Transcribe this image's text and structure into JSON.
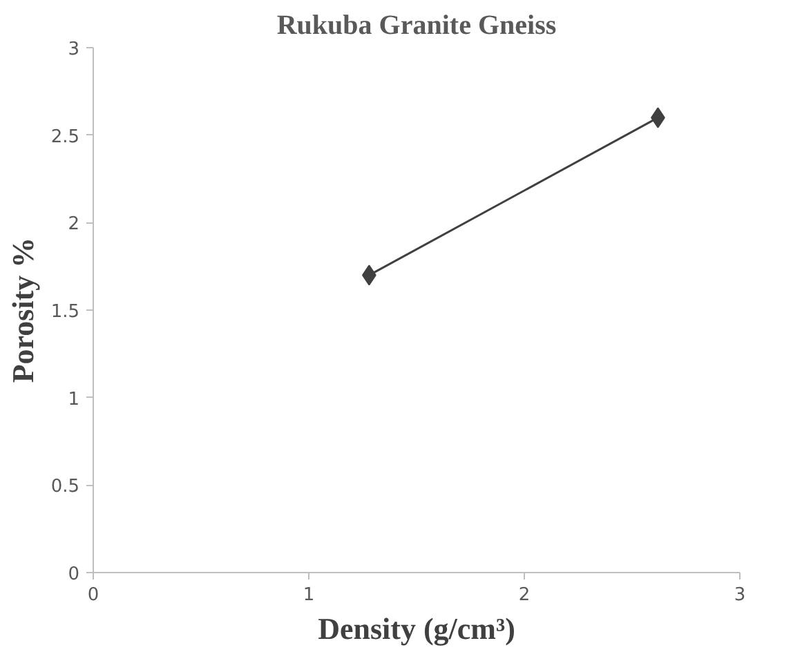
{
  "chart_data": {
    "type": "line",
    "title": "Rukuba Granite Gneiss",
    "xlabel": "Density (g/cm³)",
    "ylabel": "Porosity %",
    "x": [
      1.28,
      2.62
    ],
    "series": [
      {
        "color": "#404040",
        "values": [
          1.7,
          2.6
        ]
      }
    ],
    "xlim": [
      0,
      3
    ],
    "xticks": [
      0,
      1,
      2,
      3
    ],
    "ylim": [
      0,
      3
    ],
    "yticks": [
      0,
      0.5,
      1,
      1.5,
      2,
      2.5,
      3
    ],
    "grid": false,
    "marker": "diamond",
    "line_style": "solid"
  }
}
